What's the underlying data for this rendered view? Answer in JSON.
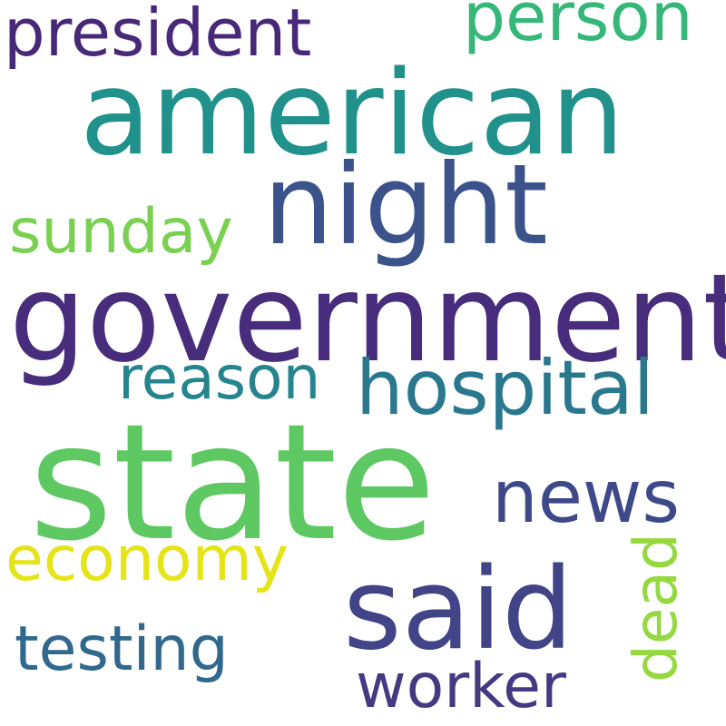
{
  "word_cloud": {
    "words": [
      {
        "text": "state",
        "color": "#5ec962",
        "orientation": "horizontal"
      },
      {
        "text": "government",
        "color": "#472d7b",
        "orientation": "horizontal"
      },
      {
        "text": "american",
        "color": "#21918c",
        "orientation": "horizontal"
      },
      {
        "text": "night",
        "color": "#3b528b",
        "orientation": "horizontal"
      },
      {
        "text": "said",
        "color": "#414487",
        "orientation": "horizontal"
      },
      {
        "text": "hospital",
        "color": "#2a788e",
        "orientation": "horizontal"
      },
      {
        "text": "president",
        "color": "#482878",
        "orientation": "horizontal"
      },
      {
        "text": "news",
        "color": "#3e4989",
        "orientation": "horizontal"
      },
      {
        "text": "person",
        "color": "#35b779",
        "orientation": "horizontal"
      },
      {
        "text": "sunday",
        "color": "#7ad151",
        "orientation": "horizontal"
      },
      {
        "text": "reason",
        "color": "#25858e",
        "orientation": "horizontal"
      },
      {
        "text": "economy",
        "color": "#e5e419",
        "orientation": "horizontal"
      },
      {
        "text": "testing",
        "color": "#31688e",
        "orientation": "horizontal"
      },
      {
        "text": "worker",
        "color": "#443a83",
        "orientation": "horizontal"
      },
      {
        "text": "dead",
        "color": "#95d840",
        "orientation": "vertical"
      }
    ]
  }
}
